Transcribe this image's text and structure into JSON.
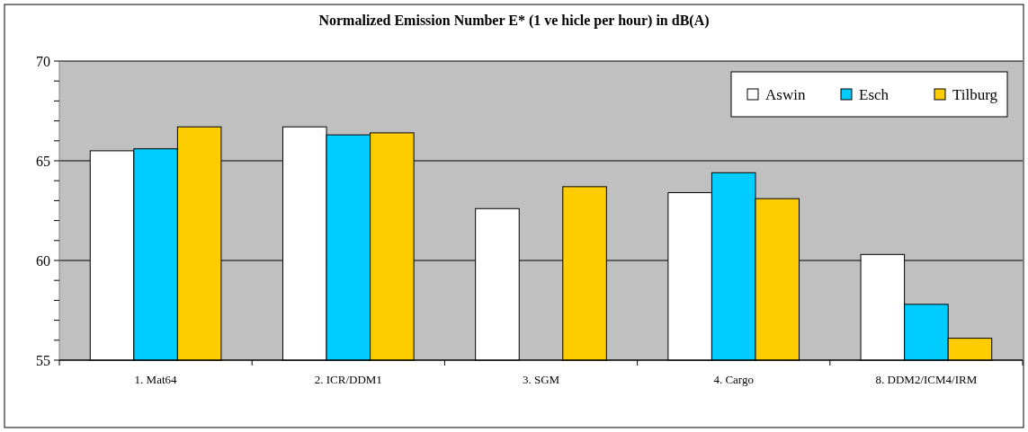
{
  "chart_data": {
    "type": "bar",
    "title": "Normalized Emission Number E* (1 ve hicle per hour) in dB(A)",
    "categories": [
      "1. Mat64",
      "2. ICR/DDM1",
      "3. SGM",
      "4. Cargo",
      "8. DDM2/ICM4/IRM"
    ],
    "series": [
      {
        "name": "Aswin",
        "color": "#ffffff",
        "values": [
          65.5,
          66.7,
          62.6,
          63.4,
          60.3
        ]
      },
      {
        "name": "Esch",
        "color": "#00ccff",
        "values": [
          65.6,
          66.3,
          null,
          64.4,
          57.8
        ]
      },
      {
        "name": "Tilburg",
        "color": "#ffcc00",
        "values": [
          66.7,
          66.4,
          63.7,
          63.1,
          56.1
        ]
      }
    ],
    "ylim": [
      55,
      70
    ],
    "yticks": [
      55,
      {
        "value": 56,
        "label": null
      },
      {
        "value": 57,
        "label": null
      },
      {
        "value": 58,
        "label": null
      },
      {
        "value": 59,
        "label": null
      },
      60,
      {
        "value": 61,
        "label": null
      },
      {
        "value": 62,
        "label": null
      },
      {
        "value": 63,
        "label": null
      },
      {
        "value": 64,
        "label": null
      },
      65,
      {
        "value": 66,
        "label": null
      },
      {
        "value": 67,
        "label": null
      },
      {
        "value": 68,
        "label": null
      },
      {
        "value": 69,
        "label": null
      },
      70
    ],
    "grid": "y",
    "legend": "top right"
  }
}
